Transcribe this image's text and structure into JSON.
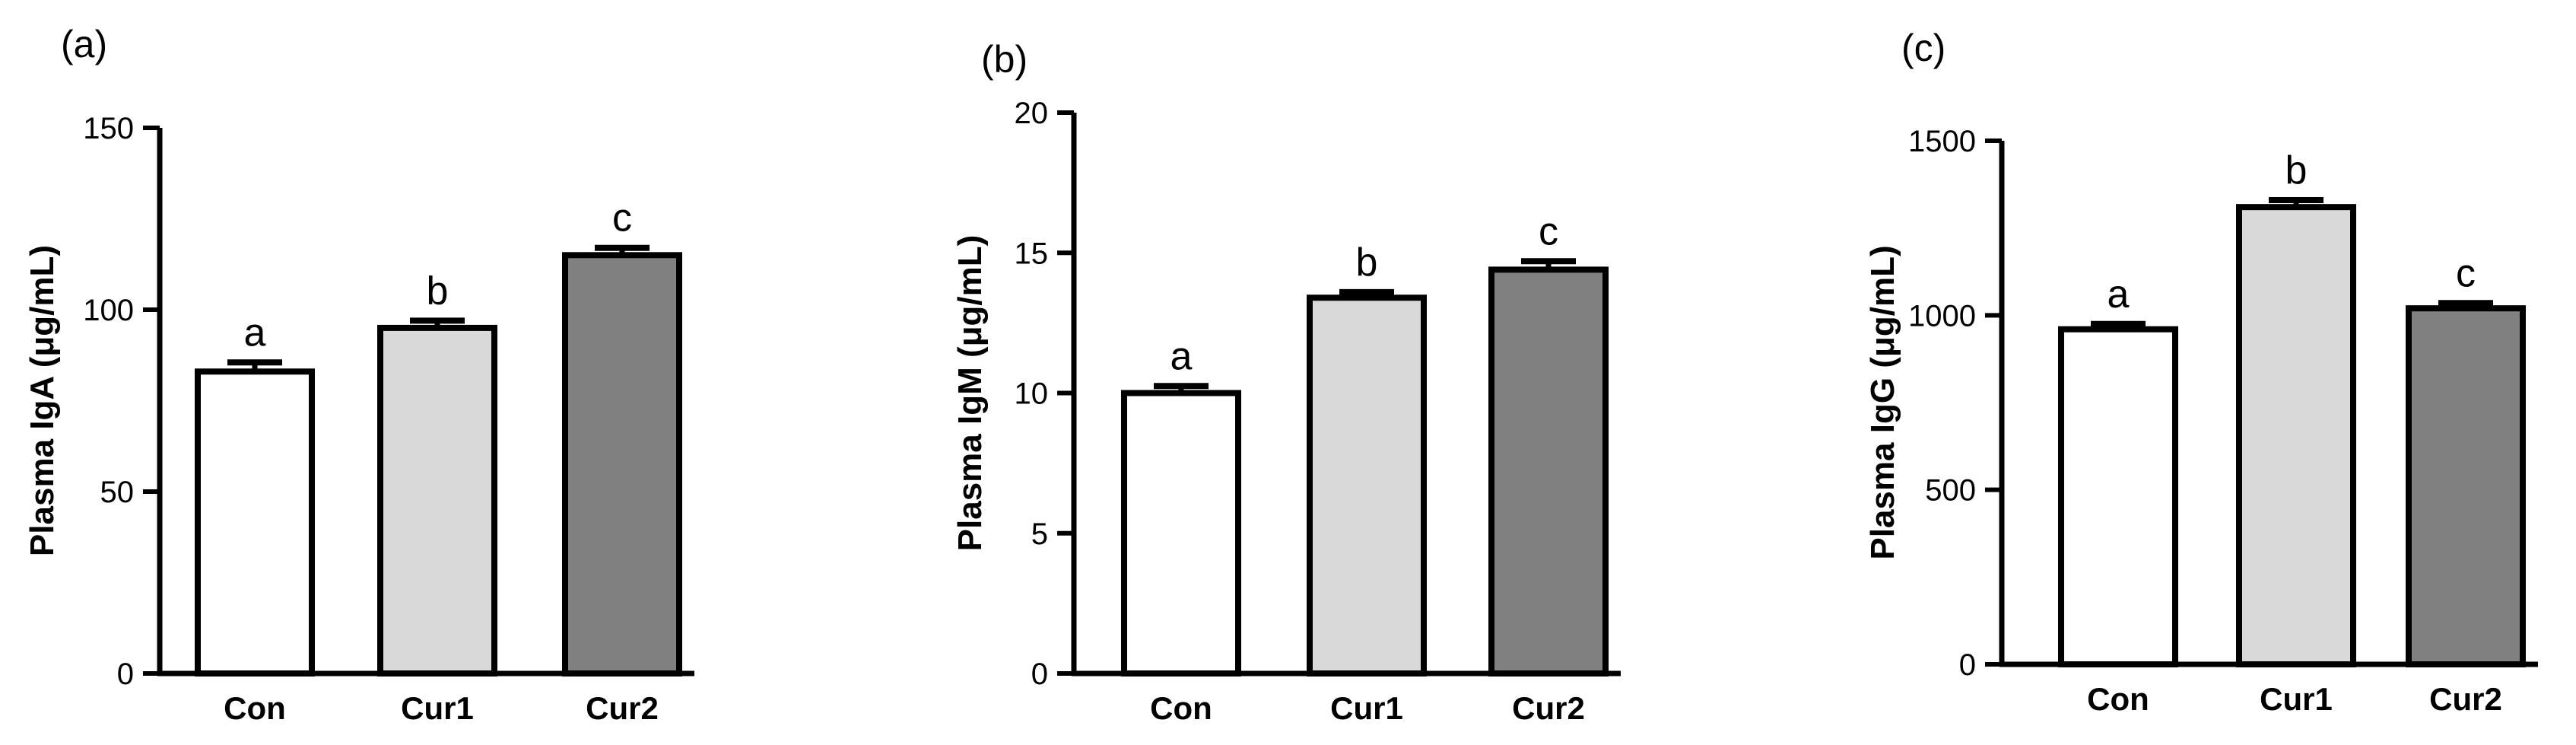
{
  "chart_data": [
    {
      "type": "bar",
      "panel_label": "(a)",
      "ylabel": "Plasma IgA (μg/mL)",
      "categories": [
        "Con",
        "Cur1",
        "Cur2"
      ],
      "values": [
        83,
        95,
        115
      ],
      "errors": [
        2.5,
        2,
        2
      ],
      "significance": [
        "a",
        "b",
        "c"
      ],
      "ylim": [
        0,
        150
      ],
      "yticks": [
        0,
        50,
        100,
        150
      ],
      "bar_colors": [
        "#ffffff",
        "#d9d9d9",
        "#808080"
      ],
      "grid": false
    },
    {
      "type": "bar",
      "panel_label": "(b)",
      "ylabel": "Plasma IgM (μg/mL)",
      "categories": [
        "Con",
        "Cur1",
        "Cur2"
      ],
      "values": [
        10,
        13.4,
        14.4
      ],
      "errors": [
        0.25,
        0.2,
        0.3
      ],
      "significance": [
        "a",
        "b",
        "c"
      ],
      "ylim": [
        0,
        20
      ],
      "yticks": [
        0,
        5,
        10,
        15,
        20
      ],
      "bar_colors": [
        "#ffffff",
        "#d9d9d9",
        "#808080"
      ],
      "grid": false
    },
    {
      "type": "bar",
      "panel_label": "(c)",
      "ylabel": "Plasma IgG (μg/mL)",
      "categories": [
        "Con",
        "Cur1",
        "Cur2"
      ],
      "values": [
        960,
        1310,
        1020
      ],
      "errors": [
        15,
        20,
        15
      ],
      "significance": [
        "a",
        "b",
        "c"
      ],
      "ylim": [
        0,
        1500
      ],
      "yticks": [
        0,
        500,
        1000,
        1500
      ],
      "bar_colors": [
        "#ffffff",
        "#d9d9d9",
        "#808080"
      ],
      "grid": false
    }
  ]
}
